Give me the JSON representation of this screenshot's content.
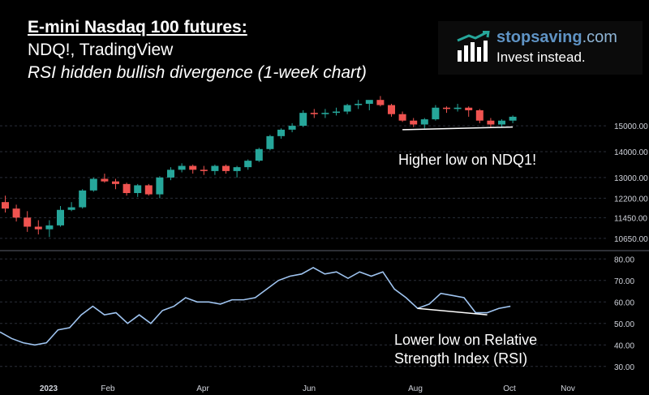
{
  "header": {
    "title": "E-mini Nasdaq 100 futures:",
    "subtitle": "NDQ!, TradingView",
    "description": "RSI hidden bullish divergence (1-week chart)"
  },
  "logo": {
    "name_bold": "stopsaving",
    "name_suffix": ".com",
    "tagline": "Invest instead.",
    "icon": "bar-chart-growth-icon"
  },
  "annotations": {
    "price": "Higher low on NDQ1!",
    "rsi_line1": "Lower low on Relative",
    "rsi_line2": "Strength Index (RSI)"
  },
  "colors": {
    "up": "#26a69a",
    "down": "#ef5350",
    "rsi_line": "#9fc4f0",
    "axis_text": "#d1d4dc",
    "grid": "#2a2e39",
    "divider": "#5d606b",
    "trendline": "#ffffff"
  },
  "chart_data": [
    {
      "type": "candlestick",
      "title": "",
      "xlabel": "",
      "ylabel": "",
      "ylim": [
        10300,
        16100
      ],
      "y_ticks": [
        "15000.00",
        "14000.00",
        "13000.00",
        "12200.00",
        "11450.00",
        "10650.00"
      ],
      "x_ticks": [
        "2023",
        "Feb",
        "Apr",
        "Jun",
        "Aug",
        "Oct",
        "Nov"
      ],
      "ohlc": [
        [
          12050,
          12300,
          11650,
          11800
        ],
        [
          11800,
          11950,
          11300,
          11450
        ],
        [
          11450,
          11700,
          10900,
          11100
        ],
        [
          11100,
          11350,
          10800,
          11000
        ],
        [
          11000,
          11350,
          10700,
          11150
        ],
        [
          11150,
          11900,
          11100,
          11750
        ],
        [
          11750,
          12050,
          11700,
          11850
        ],
        [
          11850,
          12550,
          11800,
          12500
        ],
        [
          12500,
          13000,
          12450,
          12950
        ],
        [
          12950,
          13150,
          12800,
          12850
        ],
        [
          12850,
          12950,
          12550,
          12750
        ],
        [
          12750,
          12800,
          12300,
          12400
        ],
        [
          12400,
          12750,
          12250,
          12700
        ],
        [
          12700,
          12750,
          12300,
          12350
        ],
        [
          12350,
          13050,
          12200,
          13000
        ],
        [
          13000,
          13400,
          12900,
          13300
        ],
        [
          13300,
          13550,
          13200,
          13450
        ],
        [
          13450,
          13500,
          13150,
          13300
        ],
        [
          13300,
          13450,
          13100,
          13250
        ],
        [
          13250,
          13500,
          13100,
          13450
        ],
        [
          13450,
          13500,
          13150,
          13250
        ],
        [
          13250,
          13450,
          13000,
          13400
        ],
        [
          13400,
          13700,
          13300,
          13650
        ],
        [
          13650,
          14150,
          13600,
          14100
        ],
        [
          14100,
          14650,
          14050,
          14600
        ],
        [
          14600,
          14900,
          14500,
          14850
        ],
        [
          14850,
          15100,
          14750,
          15000
        ],
        [
          15000,
          15600,
          14950,
          15500
        ],
        [
          15500,
          15650,
          15300,
          15450
        ],
        [
          15450,
          15650,
          15300,
          15500
        ],
        [
          15500,
          15700,
          15400,
          15550
        ],
        [
          15550,
          15850,
          15450,
          15800
        ],
        [
          15800,
          16000,
          15650,
          15850
        ],
        [
          15850,
          15950,
          15600,
          16000
        ],
        [
          16000,
          16150,
          15750,
          15800
        ],
        [
          15800,
          15850,
          15350,
          15450
        ],
        [
          15450,
          15550,
          15150,
          15200
        ],
        [
          15200,
          15300,
          14950,
          15050
        ],
        [
          15050,
          15300,
          14900,
          15250
        ],
        [
          15250,
          15800,
          15200,
          15700
        ],
        [
          15700,
          15750,
          15500,
          15650
        ],
        [
          15650,
          15850,
          15550,
          15700
        ],
        [
          15700,
          15750,
          15350,
          15600
        ],
        [
          15600,
          15650,
          15100,
          15200
        ],
        [
          15200,
          15300,
          14950,
          15050
        ],
        [
          15050,
          15250,
          14950,
          15200
        ],
        [
          15200,
          15400,
          15100,
          15350
        ]
      ],
      "trendline": {
        "from_index": 36,
        "to_index": 46,
        "from_value": 14850,
        "to_value": 14950
      }
    },
    {
      "type": "line",
      "title": "",
      "ylim": [
        25,
        82
      ],
      "y_ticks": [
        "80.00",
        "70.00",
        "60.00",
        "50.00",
        "40.00",
        "30.00"
      ],
      "series": [
        {
          "name": "",
          "values": [
            46,
            43,
            41,
            40,
            41,
            47,
            48,
            54,
            58,
            54,
            55,
            50,
            54,
            50,
            56,
            58,
            62,
            60,
            60,
            59,
            61,
            61,
            62,
            66,
            70,
            72,
            73,
            76,
            73,
            74,
            71,
            74,
            72,
            74,
            66,
            62,
            57,
            59,
            64,
            63,
            62,
            55,
            55,
            57,
            58
          ]
        }
      ],
      "trendline": {
        "from_index": 36,
        "to_index": 42,
        "from_value": 57,
        "to_value": 54
      }
    }
  ]
}
